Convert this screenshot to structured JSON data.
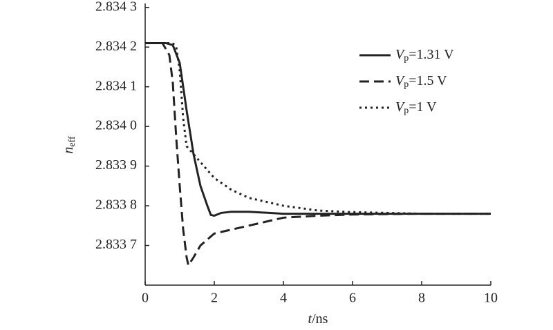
{
  "chart_data": {
    "type": "line",
    "y_label": "neff",
    "x_label": "t/ns",
    "xlim": [
      0,
      10
    ],
    "xticks": [
      0,
      2,
      4,
      6,
      8,
      10
    ],
    "ylim": [
      2.8336,
      2.83431
    ],
    "yticks": [
      {
        "value": 2.8337,
        "label": "2.833 7"
      },
      {
        "value": 2.8338,
        "label": "2.833 8"
      },
      {
        "value": 2.8339,
        "label": "2.833 9"
      },
      {
        "value": 2.834,
        "label": "2.834 0"
      },
      {
        "value": 2.8341,
        "label": "2.834 1"
      },
      {
        "value": 2.8342,
        "label": "2.834 2"
      },
      {
        "value": 2.8343,
        "label": "2.834 3"
      }
    ],
    "legend": "upper right",
    "series": [
      {
        "name": "Vp=1.31 V",
        "color": "#222222",
        "dash": "solid",
        "x": [
          0,
          0.6,
          0.8,
          1.0,
          1.2,
          1.4,
          1.6,
          1.8,
          1.9,
          2.0,
          2.2,
          2.5,
          3,
          4,
          6,
          8,
          10
        ],
        "values": [
          2.83421,
          2.83421,
          2.834205,
          2.83416,
          2.83404,
          2.83393,
          2.83385,
          2.8338,
          2.833777,
          2.833775,
          2.833782,
          2.833785,
          2.833785,
          2.83378,
          2.83378,
          2.83378,
          2.83378
        ]
      },
      {
        "name": "Vp=1.5 V",
        "color": "#222222",
        "dash": "dashed",
        "x": [
          0,
          0.5,
          0.7,
          0.8,
          0.9,
          1.0,
          1.1,
          1.2,
          1.25,
          1.4,
          1.6,
          2,
          2.5,
          3,
          4,
          5,
          6,
          8,
          10
        ],
        "values": [
          2.83421,
          2.83421,
          2.83418,
          2.83411,
          2.83397,
          2.83385,
          2.83374,
          2.83367,
          2.83365,
          2.83367,
          2.8337,
          2.83373,
          2.83374,
          2.83375,
          2.83377,
          2.833775,
          2.833778,
          2.83378,
          2.83378
        ]
      },
      {
        "name": "Vp=1 V",
        "color": "#222222",
        "dash": "dotted",
        "x": [
          0,
          0.8,
          0.9,
          1.0,
          1.1,
          1.2,
          1.5,
          2,
          2.5,
          3,
          4,
          5,
          6,
          7,
          8,
          10
        ],
        "values": [
          2.83421,
          2.83421,
          2.8342,
          2.83414,
          2.83402,
          2.83395,
          2.83392,
          2.83387,
          2.83384,
          2.83382,
          2.8338,
          2.833788,
          2.833784,
          2.833782,
          2.83378,
          2.83378
        ]
      }
    ]
  }
}
